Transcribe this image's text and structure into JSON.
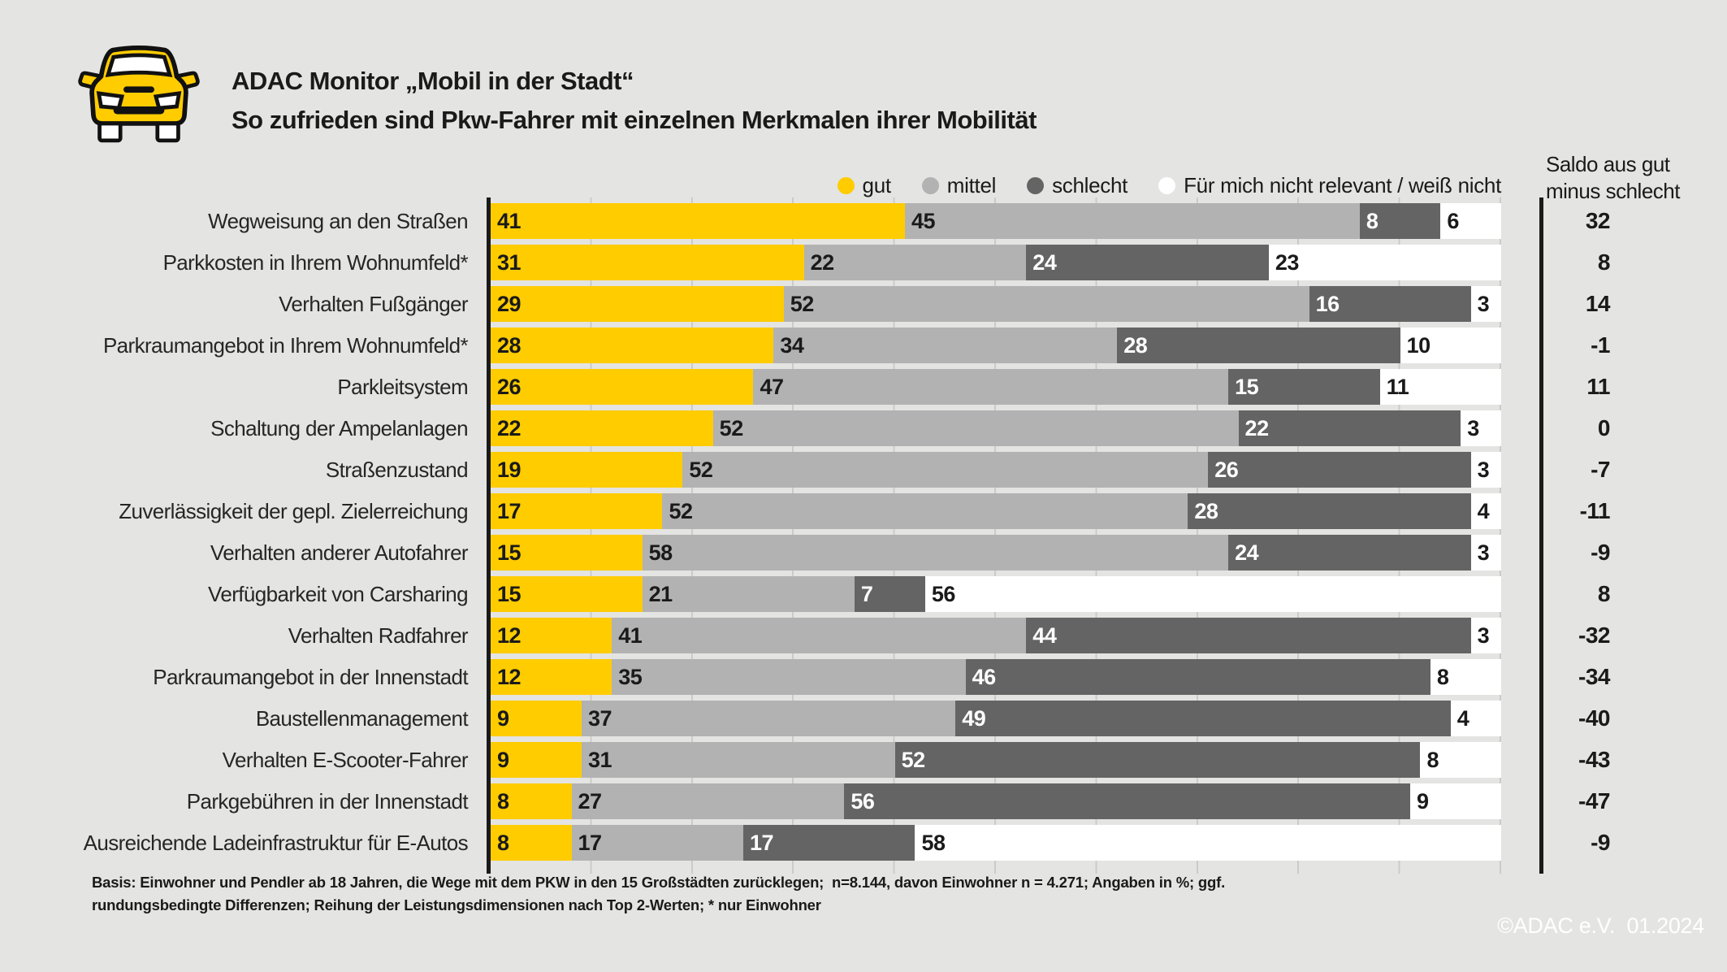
{
  "header": {
    "title_line1": "ADAC Monitor „Mobil in der Stadt“",
    "title_line2": "So zufrieden sind Pkw-Fahrer mit einzelnen Merkmalen ihrer Mobilität"
  },
  "colors": {
    "gut": "#FFCC00",
    "mittel": "#B2B2B2",
    "schlecht": "#646464",
    "nicht_relevant": "#FFFFFF",
    "background": "#E4E4E2",
    "axis": "#1A1A1A",
    "grid": "#CBCBC9",
    "text": "#1A1A1A"
  },
  "chart_data": {
    "type": "bar",
    "orientation": "horizontal",
    "stacked": true,
    "unit": "%",
    "x_range": [
      0,
      100
    ],
    "grid_interval": 10,
    "legend_position": "top-right",
    "legend": [
      {
        "key": "gut",
        "label": "gut",
        "color": "#FFCC00"
      },
      {
        "key": "mittel",
        "label": "mittel",
        "color": "#B2B2B2"
      },
      {
        "key": "schlecht",
        "label": "schlecht",
        "color": "#646464"
      },
      {
        "key": "nicht_relevant",
        "label": "Für mich nicht relevant / weiß nicht",
        "color": "#FFFFFF"
      }
    ],
    "saldo_column": {
      "header_line1": "Saldo aus gut",
      "header_line2": "minus schlecht"
    },
    "rows": [
      {
        "label": "Wegweisung an den Straßen",
        "gut": 41,
        "mittel": 45,
        "schlecht": 8,
        "nicht_relevant": 6,
        "saldo": "32"
      },
      {
        "label": "Parkkosten in Ihrem Wohnumfeld*",
        "gut": 31,
        "mittel": 22,
        "schlecht": 24,
        "nicht_relevant": 23,
        "saldo": "8"
      },
      {
        "label": "Verhalten Fußgänger",
        "gut": 29,
        "mittel": 52,
        "schlecht": 16,
        "nicht_relevant": 3,
        "saldo": "14"
      },
      {
        "label": "Parkraumangebot in Ihrem Wohnumfeld*",
        "gut": 28,
        "mittel": 34,
        "schlecht": 28,
        "nicht_relevant": 10,
        "saldo": "-1"
      },
      {
        "label": "Parkleitsystem",
        "gut": 26,
        "mittel": 47,
        "schlecht": 15,
        "nicht_relevant": 11,
        "saldo": "11"
      },
      {
        "label": "Schaltung der Ampelanlagen",
        "gut": 22,
        "mittel": 52,
        "schlecht": 22,
        "nicht_relevant": 3,
        "saldo": "0"
      },
      {
        "label": "Straßenzustand",
        "gut": 19,
        "mittel": 52,
        "schlecht": 26,
        "nicht_relevant": 3,
        "saldo": "-7"
      },
      {
        "label": "Zuverlässigkeit der gepl. Zielerreichung",
        "gut": 17,
        "mittel": 52,
        "schlecht": 28,
        "nicht_relevant": 4,
        "saldo": "-11"
      },
      {
        "label": "Verhalten anderer Autofahrer",
        "gut": 15,
        "mittel": 58,
        "schlecht": 24,
        "nicht_relevant": 3,
        "saldo": "-9"
      },
      {
        "label": "Verfügbarkeit von Carsharing",
        "gut": 15,
        "mittel": 21,
        "schlecht": 7,
        "nicht_relevant": 56,
        "saldo": "8"
      },
      {
        "label": "Verhalten Radfahrer",
        "gut": 12,
        "mittel": 41,
        "schlecht": 44,
        "nicht_relevant": 3,
        "saldo": "-32"
      },
      {
        "label": "Parkraumangebot in der Innenstadt",
        "gut": 12,
        "mittel": 35,
        "schlecht": 46,
        "nicht_relevant": 8,
        "saldo": "-34"
      },
      {
        "label": "Baustellenmanagement",
        "gut": 9,
        "mittel": 37,
        "schlecht": 49,
        "nicht_relevant": 4,
        "saldo": "-40"
      },
      {
        "label": "Verhalten E-Scooter-Fahrer",
        "gut": 9,
        "mittel": 31,
        "schlecht": 52,
        "nicht_relevant": 8,
        "saldo": "-43"
      },
      {
        "label": "Parkgebühren in der Innenstadt",
        "gut": 8,
        "mittel": 27,
        "schlecht": 56,
        "nicht_relevant": 9,
        "saldo": "-47"
      },
      {
        "label": "Ausreichende Ladeinfrastruktur für E-Autos",
        "gut": 8,
        "mittel": 17,
        "schlecht": 17,
        "nicht_relevant": 58,
        "saldo": "-9"
      }
    ]
  },
  "footer": {
    "line1": "Basis: Einwohner und Pendler ab 18 Jahren, die Wege mit dem PKW in den 15 Großstädten zurücklegen;  n=8.144, davon Einwohner n = 4.271; Angaben in %; ggf.",
    "line2": "rundungsbedingte Differenzen; Reihung der Leistungsdimensionen nach Top 2-Werten; * nur Einwohner"
  },
  "copyright": "©ADAC e.V.  01.2024"
}
